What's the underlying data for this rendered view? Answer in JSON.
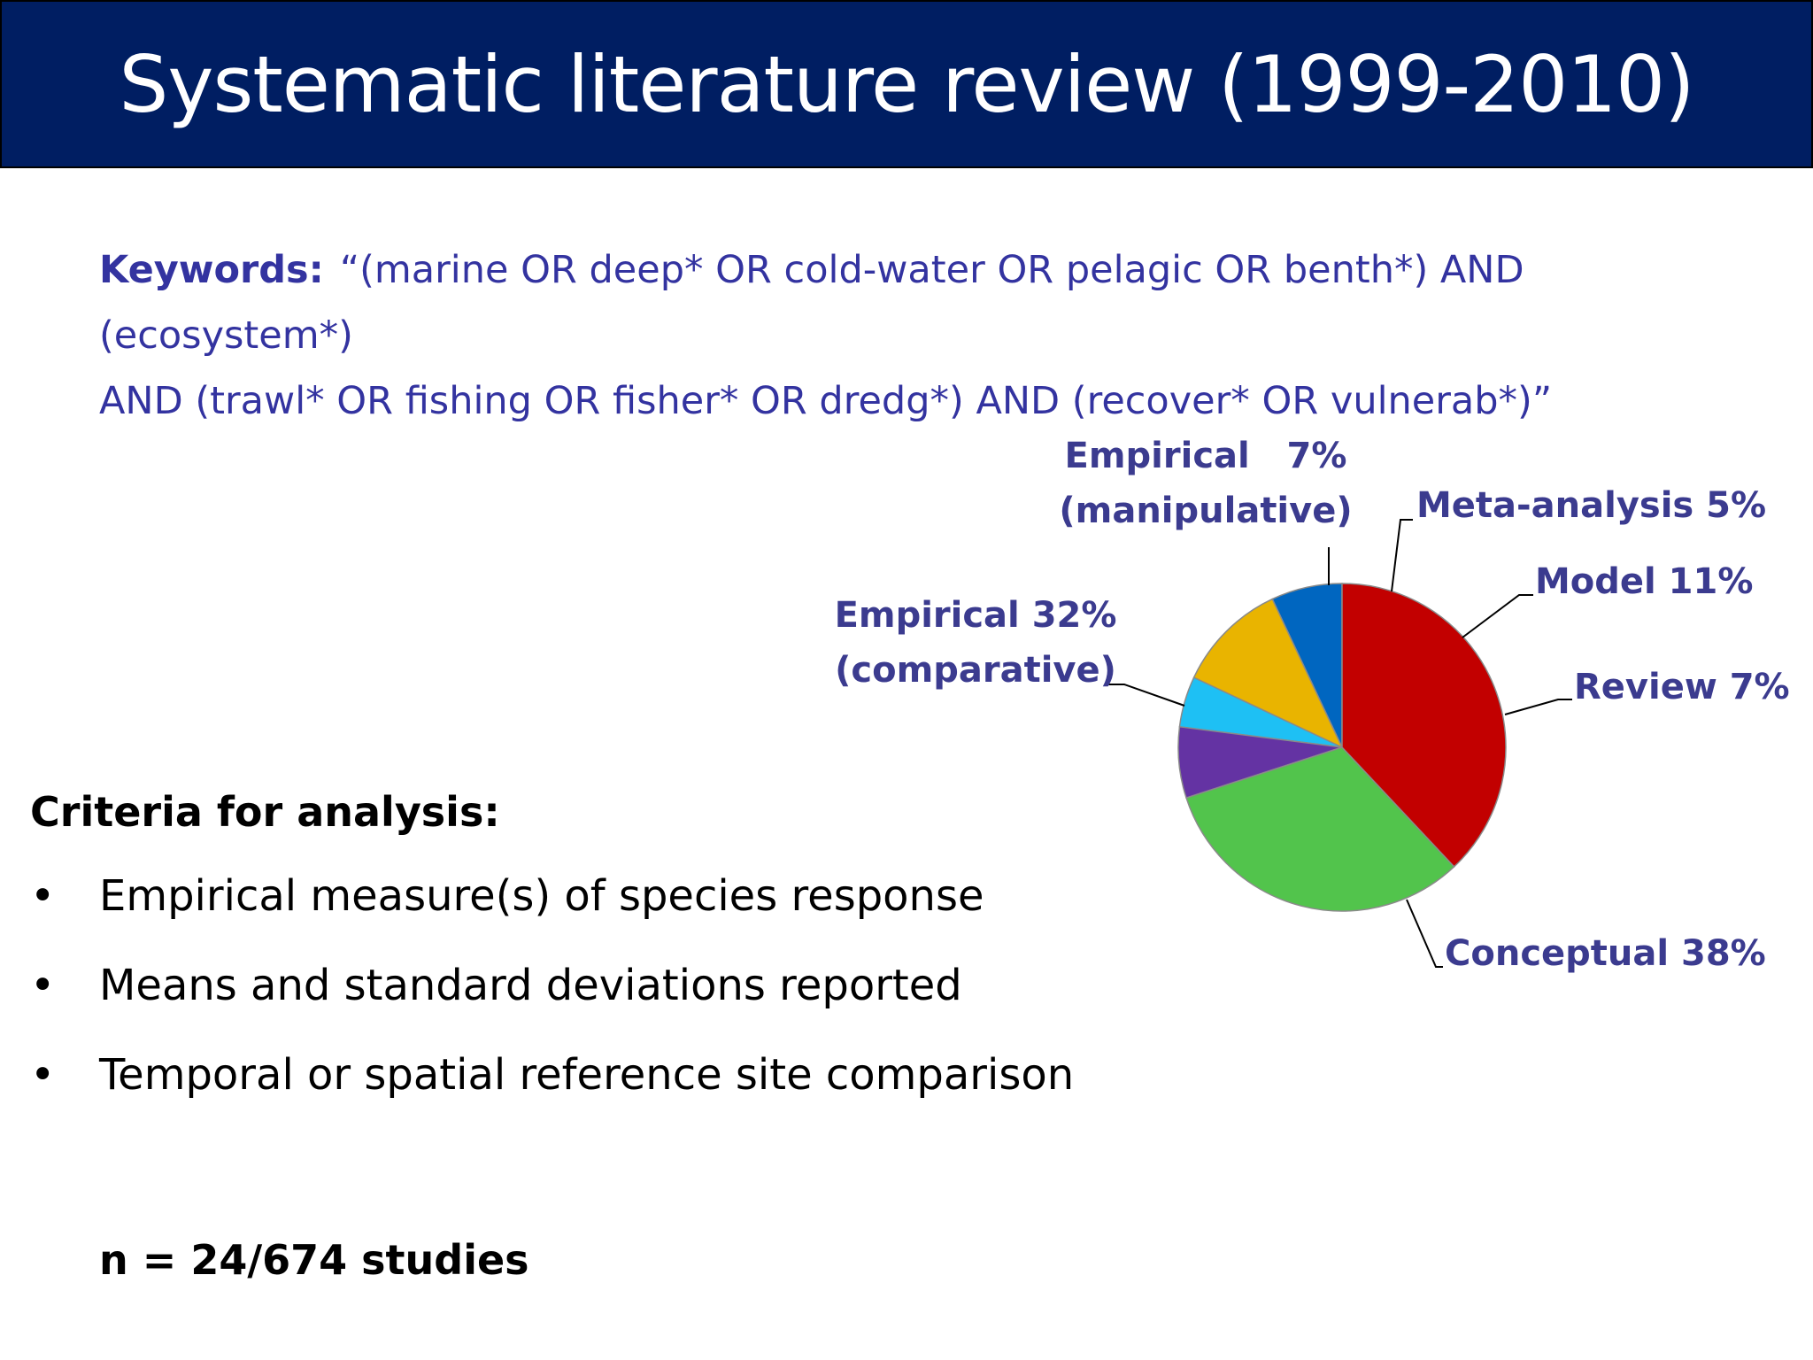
{
  "title": "Systematic literature review (1999-2010)",
  "keywords": {
    "label": "Keywords:",
    "line1": "“(marine OR deep* OR cold-water OR pelagic OR benth*) AND (ecosystem*)",
    "line2": "AND (trawl* OR fishing OR fisher* OR dredg*) AND (recover* OR vulnerab*)”"
  },
  "criteria": {
    "heading": "Criteria for analysis:",
    "bullet": "•",
    "items": [
      "Empirical measure(s) of species response",
      "Means and standard deviations reported",
      "Temporal or spatial reference site comparison"
    ]
  },
  "n_studies": "n = 24/674 studies",
  "chart_data": {
    "type": "pie",
    "title": "",
    "start_angle_deg": 90,
    "direction": "counterclockwise",
    "slices": [
      {
        "name": "Review",
        "label_lines": [
          "Review 7%"
        ],
        "value": 7,
        "color": "#0066c0"
      },
      {
        "name": "Model",
        "label_lines": [
          "Model 11%"
        ],
        "value": 11,
        "color": "#e9b400"
      },
      {
        "name": "Meta-analysis",
        "label_lines": [
          "Meta-analysis 5%"
        ],
        "value": 5,
        "color": "#1ec0f4"
      },
      {
        "name": "Empirical (manipulative)",
        "label_lines": [
          "Empirical   7%",
          "(manipulative)"
        ],
        "value": 7,
        "color": "#6433a3"
      },
      {
        "name": "Empirical (comparative)",
        "label_lines": [
          "Empirical 32%",
          "(comparative)"
        ],
        "value": 32,
        "color": "#52c44c"
      },
      {
        "name": "Conceptual",
        "label_lines": [
          "Conceptual 38%"
        ],
        "value": 38,
        "color": "#c20000"
      }
    ]
  }
}
